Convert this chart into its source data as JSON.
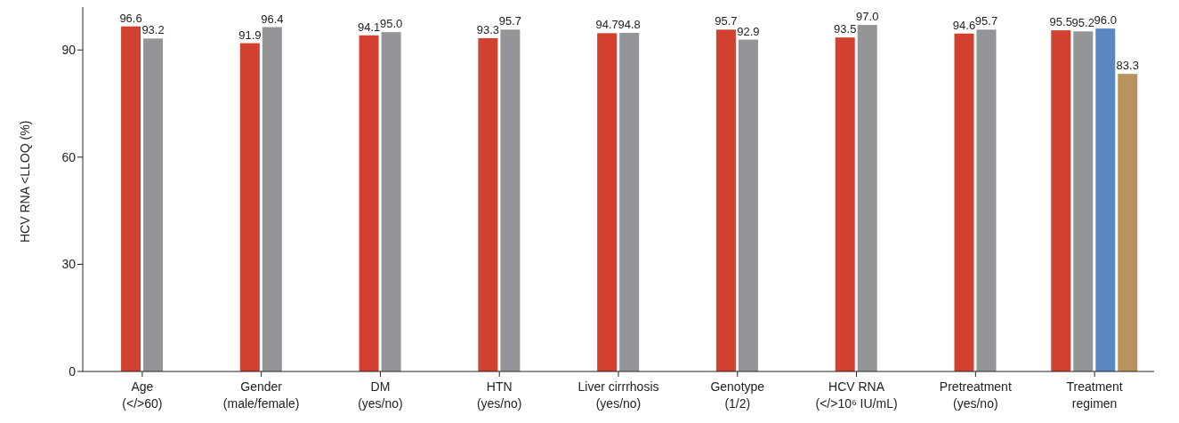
{
  "chart_data": {
    "type": "bar",
    "ylabel": "HCV RNA <LLOQ (%)",
    "categories": [
      "Age\n(</>60)",
      "Gender\n(male/female)",
      "DM\n(yes/no)",
      "HTN\n(yes/no)",
      "Liver cirrrhosis\n(yes/no)",
      "Genotype\n(1/2)",
      "HCV RNA\n(</>10⁶ IU/mL)",
      "Pretreatment\n(yes/no)",
      "Treatment\nregimen"
    ],
    "series": [
      {
        "color": "#d2412f",
        "values": [
          96.6,
          91.9,
          94.1,
          93.3,
          94.7,
          95.7,
          93.5,
          94.6,
          95.5
        ],
        "value_labels": [
          "96.6",
          "91.9",
          "94.1",
          "93.3",
          "94.7",
          "95.7",
          "93.5",
          "94.6",
          "95.5"
        ]
      },
      {
        "color": "#939598",
        "values": [
          93.2,
          96.4,
          95.0,
          95.7,
          94.8,
          92.9,
          97.0,
          95.7,
          95.2
        ],
        "value_labels": [
          "93.2",
          "96.4",
          "95.0",
          "95.7",
          "94.8",
          "92.9",
          "97.0",
          "95.7",
          "95.2"
        ]
      },
      {
        "color": "#5b88c0",
        "values": [
          null,
          null,
          null,
          null,
          null,
          null,
          null,
          null,
          96.0
        ],
        "value_labels": [
          null,
          null,
          null,
          null,
          null,
          null,
          null,
          null,
          "96.0"
        ]
      },
      {
        "color": "#b8935e",
        "values": [
          null,
          null,
          null,
          null,
          null,
          null,
          null,
          null,
          83.3
        ],
        "value_labels": [
          null,
          null,
          null,
          null,
          null,
          null,
          null,
          null,
          "83.3"
        ]
      }
    ],
    "ylim": [
      0,
      102
    ],
    "yticks": [
      0,
      30,
      60,
      90
    ],
    "grid": false
  }
}
